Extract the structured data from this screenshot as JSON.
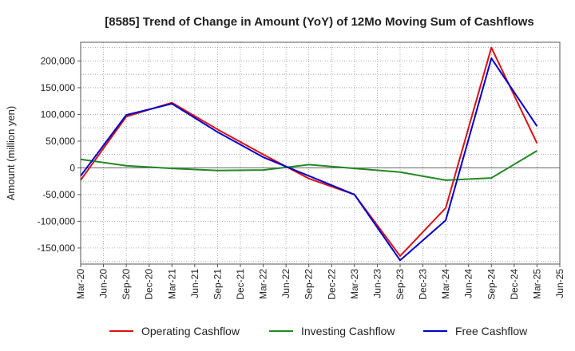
{
  "chart_data": {
    "type": "line",
    "title": "[8585]  Trend of Change in Amount (YoY) of 12Mo Moving Sum of Cashflows",
    "xlabel": "",
    "ylabel": "Amount (million yen)",
    "ylim": [
      -180000,
      235000
    ],
    "yticks": [
      -150000,
      -100000,
      -50000,
      0,
      50000,
      100000,
      150000,
      200000
    ],
    "ytick_labels": [
      "-150,000",
      "-100,000",
      "-50,000",
      "0",
      "50,000",
      "100,000",
      "150,000",
      "200,000"
    ],
    "grid": true,
    "legend_position": "bottom",
    "categories": [
      "Mar-20",
      "Jun-20",
      "Sep-20",
      "Dec-20",
      "Mar-21",
      "Jun-21",
      "Sep-21",
      "Dec-21",
      "Mar-22",
      "Jun-22",
      "Sep-22",
      "Dec-22",
      "Mar-23",
      "Jun-23",
      "Sep-23",
      "Dec-23",
      "Mar-24",
      "Jun-24",
      "Sep-24",
      "Dec-24",
      "Mar-25",
      "Jun-25"
    ],
    "series": [
      {
        "name": "Operating Cashflow",
        "color": "#dd1111",
        "values": [
          -23000,
          null,
          96000,
          null,
          122000,
          null,
          72000,
          null,
          25000,
          null,
          -20000,
          null,
          -50000,
          null,
          -165000,
          null,
          -75000,
          null,
          225000,
          null,
          46000,
          null
        ]
      },
      {
        "name": "Investing Cashflow",
        "color": "#228822",
        "values": [
          16000,
          null,
          4000,
          null,
          -1000,
          null,
          -5000,
          null,
          -4000,
          null,
          6000,
          null,
          -1000,
          null,
          -8000,
          null,
          -23000,
          null,
          -19000,
          null,
          32000,
          null
        ]
      },
      {
        "name": "Free Cashflow",
        "color": "#0000cc",
        "values": [
          -15000,
          null,
          99000,
          null,
          120000,
          null,
          67000,
          null,
          20000,
          null,
          -15000,
          null,
          -50000,
          null,
          -173000,
          null,
          -98000,
          null,
          205000,
          null,
          78000,
          null
        ]
      }
    ]
  }
}
